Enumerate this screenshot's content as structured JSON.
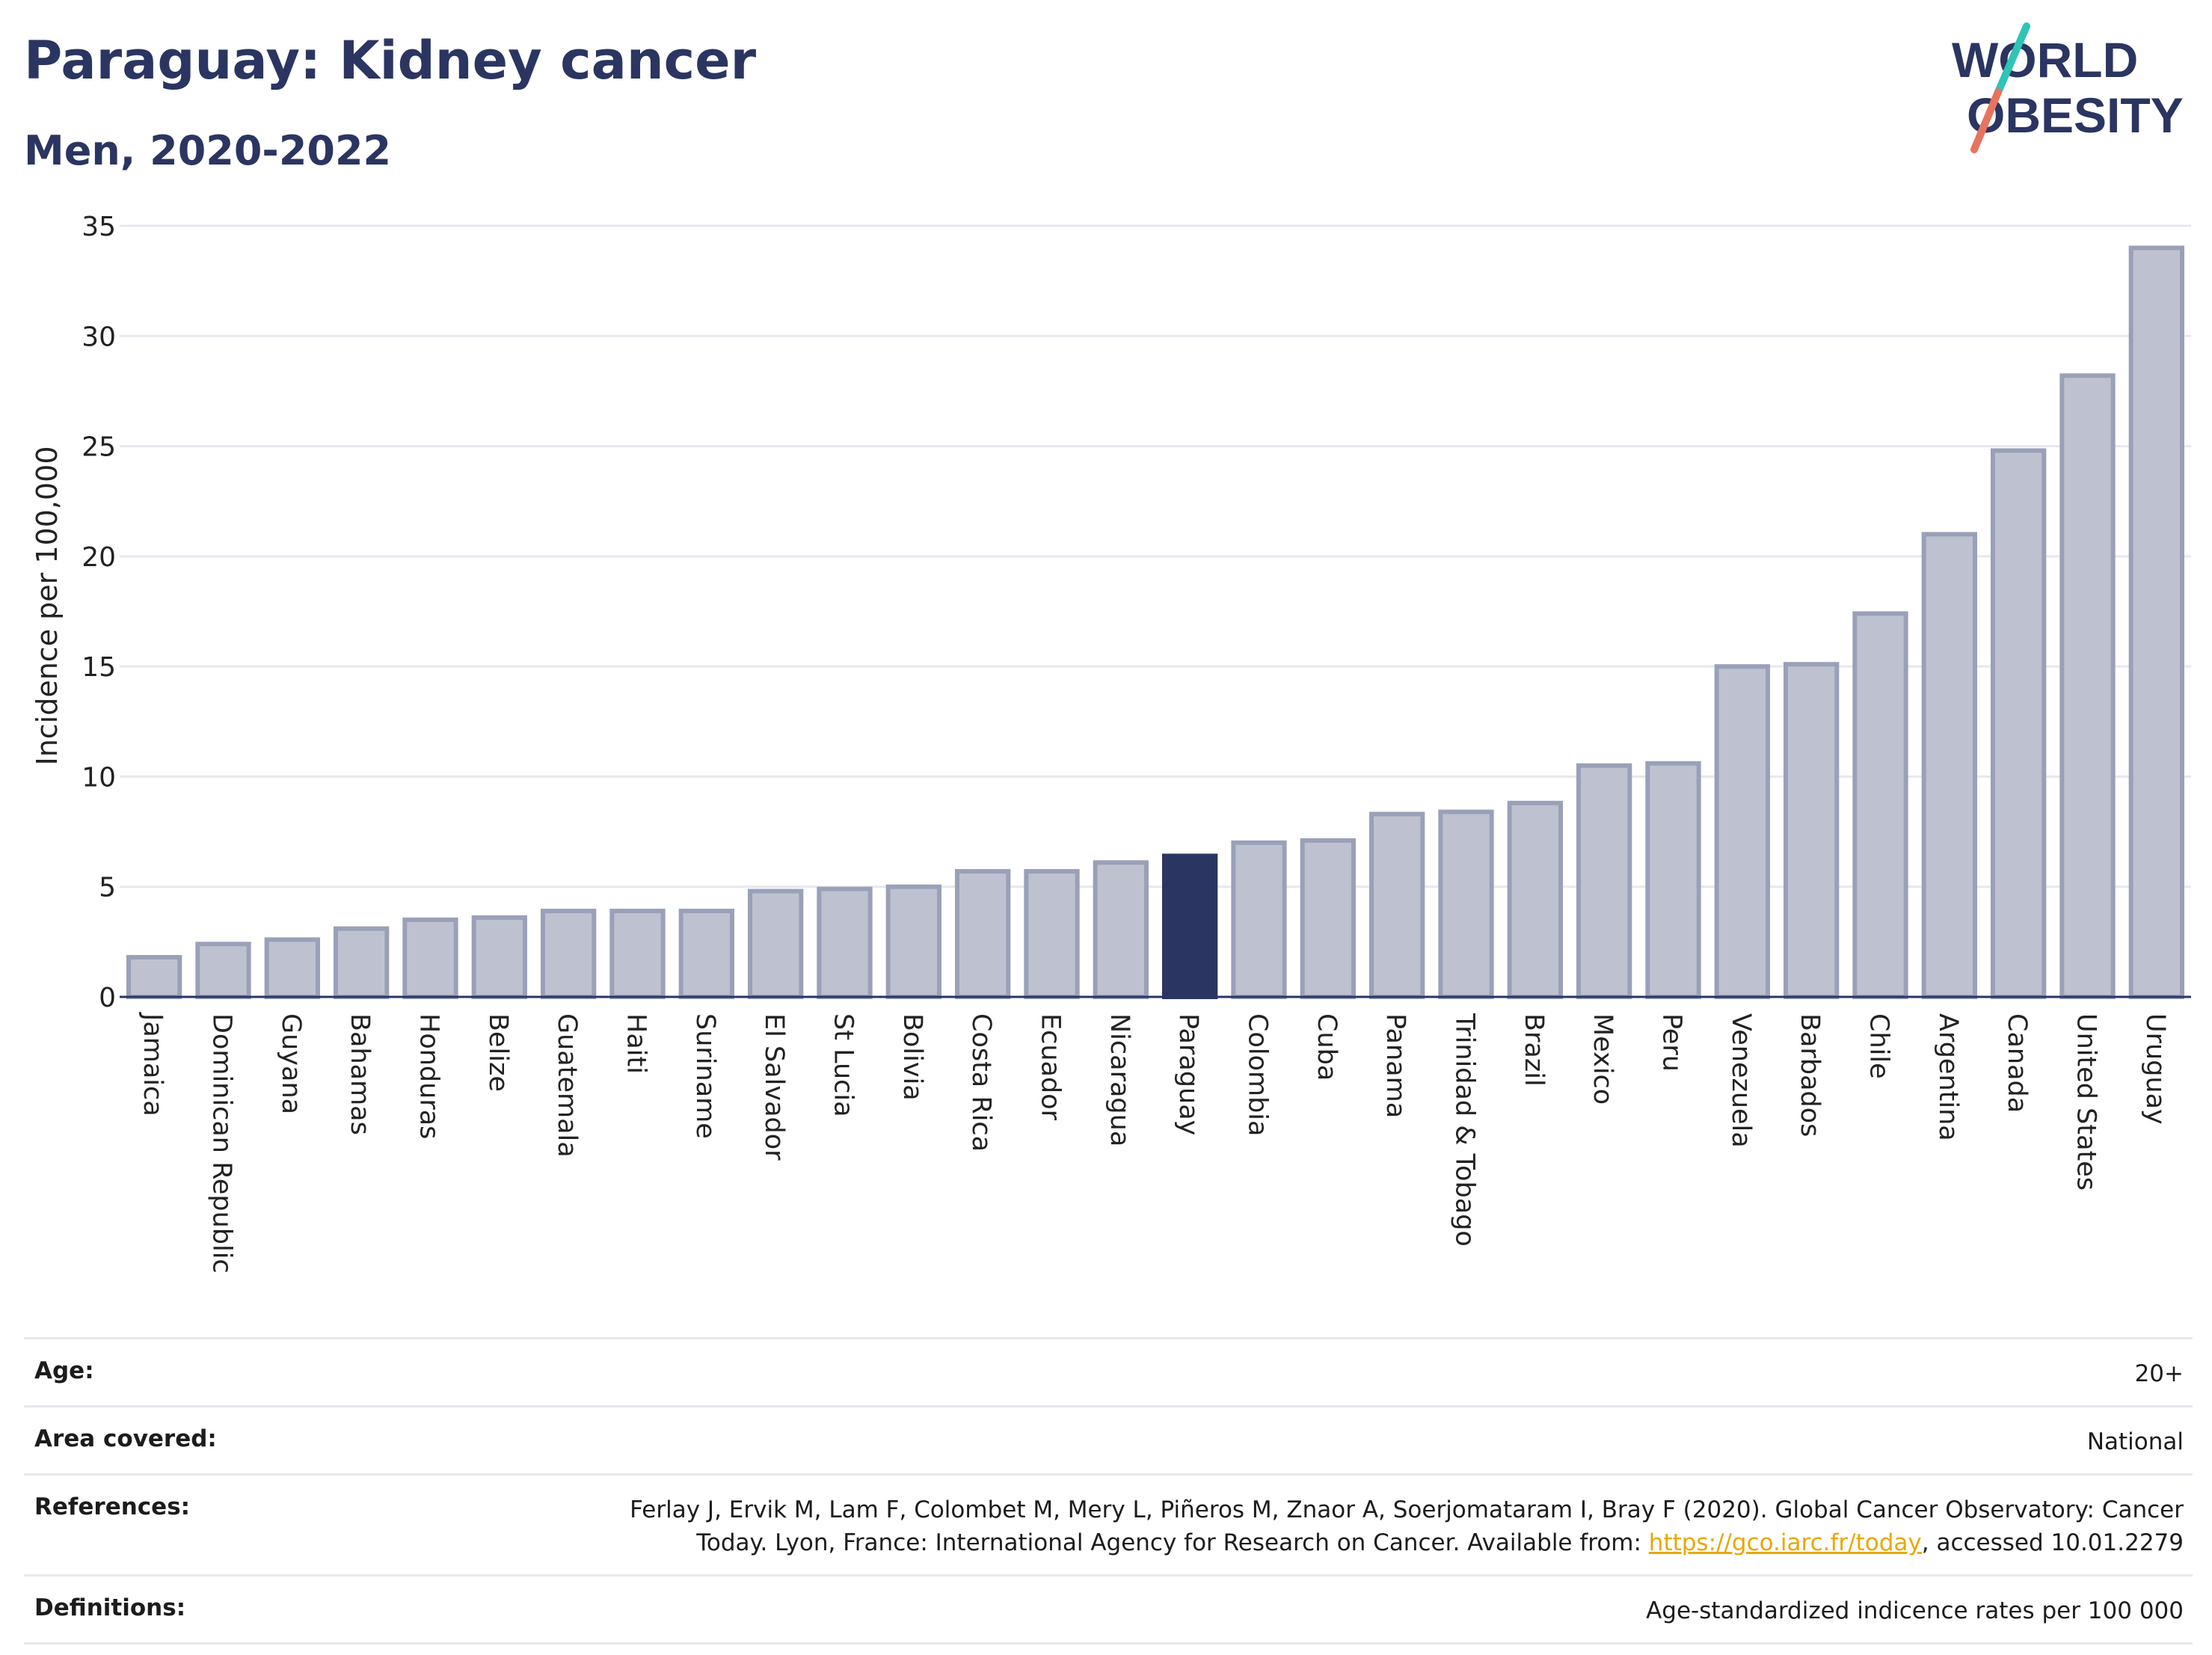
{
  "header": {
    "title": "Paraguay: Kidney cancer",
    "subtitle": "Men, 2020-2022",
    "logo_text_line1": "WORLD",
    "logo_text_line2": "OBESITY"
  },
  "colors": {
    "bar": "#bec2d0",
    "bar_stroke": "#9aa0b8",
    "highlight": "#2a3561",
    "grid": "#e6e8ee",
    "logo_teal": "#2ec4b6",
    "logo_coral": "#e8735f"
  },
  "chart_data": {
    "type": "bar",
    "title": "Paraguay: Kidney cancer",
    "subtitle": "Men, 2020-2022",
    "xlabel": "",
    "ylabel": "Incidence per 100,000",
    "ylim": [
      0,
      35
    ],
    "yticks": [
      0,
      5,
      10,
      15,
      20,
      25,
      30,
      35
    ],
    "grid": true,
    "highlight": "Paraguay",
    "categories": [
      "Jamaica",
      "Dominican Republic",
      "Guyana",
      "Bahamas",
      "Honduras",
      "Belize",
      "Guatemala",
      "Haiti",
      "Suriname",
      "El Salvador",
      "St Lucia",
      "Bolivia",
      "Costa Rica",
      "Ecuador",
      "Nicaragua",
      "Paraguay",
      "Colombia",
      "Cuba",
      "Panama",
      "Trinidad & Tobago",
      "Brazil",
      "Mexico",
      "Peru",
      "Venezuela",
      "Barbados",
      "Chile",
      "Argentina",
      "Canada",
      "United States",
      "Uruguay"
    ],
    "values": [
      1.8,
      2.4,
      2.6,
      3.1,
      3.5,
      3.6,
      3.9,
      3.9,
      3.9,
      4.8,
      4.9,
      5.0,
      5.7,
      5.7,
      6.1,
      6.4,
      7.0,
      7.1,
      8.3,
      8.4,
      8.8,
      10.5,
      10.6,
      15.0,
      15.1,
      17.4,
      21.0,
      24.8,
      28.2,
      34.0
    ]
  },
  "meta": {
    "age_label": "Age:",
    "age_value": "20+",
    "area_label": "Area covered:",
    "area_value": "National",
    "references_label": "References:",
    "references_text_1": "Ferlay J, Ervik M, Lam F, Colombet M, Mery L, Piñeros M, Znaor A, Soerjomataram I, Bray F (2020). Global Cancer Observatory: Cancer",
    "references_text_2": "Today. Lyon, France: International Agency for Research on Cancer. Available from: ",
    "references_link": "https://gco.iarc.fr/today",
    "references_text_3": ", accessed 10.01.2279",
    "definitions_label": "Definitions:",
    "definitions_value": "Age-standardized indicence rates per 100 000"
  }
}
